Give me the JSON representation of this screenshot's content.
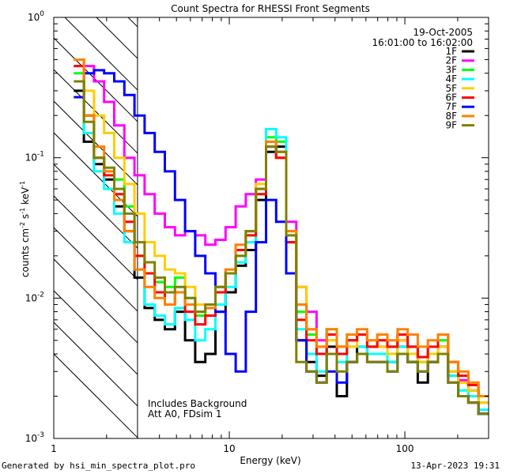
{
  "chart_data": {
    "type": "line",
    "title": "Count Spectra for RHESSI Front Segments",
    "xlabel": "Energy (keV)",
    "ylabel_parts": [
      "counts cm",
      "-2",
      " s",
      "-1",
      " keV",
      "-1"
    ],
    "xscale": "log",
    "yscale": "log",
    "xlim": [
      1.0,
      300.0
    ],
    "ylim": [
      0.001,
      1.0
    ],
    "x_ticks": [
      {
        "value": 1,
        "label": "1"
      },
      {
        "value": 10,
        "label": "10"
      },
      {
        "value": 100,
        "label": "100"
      }
    ],
    "y_ticks": [
      {
        "value": 0.001,
        "base": "10",
        "exp": "-3"
      },
      {
        "value": 0.01,
        "base": "10",
        "exp": "-2"
      },
      {
        "value": 0.1,
        "base": "10",
        "exp": "-1"
      },
      {
        "value": 1.0,
        "base": "10",
        "exp": "0"
      }
    ],
    "hatched_region_keV": [
      1.0,
      3.0
    ],
    "legend": {
      "placement": "top-right",
      "date": "19-Oct-2005",
      "time_range": "16:01:00 to 16:02:00"
    },
    "annotations": [
      "Includes Background",
      "Att A0, FDsim 1"
    ],
    "series": [
      {
        "name": "1F",
        "color": "#000000",
        "values": [
          0.3,
          0.13,
          0.09,
          0.07,
          0.045,
          0.03,
          0.014,
          0.0085,
          0.007,
          0.006,
          0.008,
          0.005,
          0.0035,
          0.004,
          0.008,
          0.011,
          0.017,
          0.022,
          0.05,
          0.11,
          0.12,
          0.025,
          0.005,
          0.0035,
          0.0028,
          0.0045,
          0.002,
          0.0035,
          0.0045,
          0.004,
          0.004,
          0.0035,
          0.0045,
          0.0035,
          0.0025,
          0.0035,
          0.0045,
          0.0028,
          0.002,
          0.0018,
          0.0015
        ]
      },
      {
        "name": "2F",
        "color": "#ff00ff",
        "values": [
          0.5,
          0.45,
          0.35,
          0.25,
          0.17,
          0.1,
          0.075,
          0.055,
          0.04,
          0.032,
          0.028,
          0.03,
          0.028,
          0.024,
          0.026,
          0.032,
          0.045,
          0.055,
          0.07,
          0.13,
          0.1,
          0.035,
          0.012,
          0.008,
          0.005,
          0.0055,
          0.0045,
          0.005,
          0.0055,
          0.0045,
          0.0045,
          0.004,
          0.005,
          0.0045,
          0.0035,
          0.004,
          0.0045,
          0.003,
          0.0026,
          0.0022,
          0.0018
        ]
      },
      {
        "name": "3F",
        "color": "#00ff00",
        "values": [
          0.4,
          0.2,
          0.1,
          0.08,
          0.07,
          0.045,
          0.02,
          0.015,
          0.013,
          0.012,
          0.014,
          0.01,
          0.0075,
          0.0085,
          0.012,
          0.015,
          0.02,
          0.03,
          0.06,
          0.14,
          0.13,
          0.03,
          0.008,
          0.0055,
          0.004,
          0.006,
          0.0045,
          0.005,
          0.0055,
          0.0045,
          0.005,
          0.0045,
          0.0055,
          0.0045,
          0.0035,
          0.004,
          0.005,
          0.003,
          0.0025,
          0.0022,
          0.0018
        ]
      },
      {
        "name": "4F",
        "color": "#00ffff",
        "values": [
          0.45,
          0.15,
          0.08,
          0.06,
          0.04,
          0.025,
          0.016,
          0.009,
          0.0075,
          0.0065,
          0.0085,
          0.007,
          0.005,
          0.006,
          0.009,
          0.012,
          0.018,
          0.025,
          0.055,
          0.16,
          0.14,
          0.028,
          0.006,
          0.004,
          0.003,
          0.005,
          0.0035,
          0.0045,
          0.0045,
          0.004,
          0.004,
          0.0035,
          0.0045,
          0.004,
          0.0035,
          0.004,
          0.0045,
          0.0028,
          0.0022,
          0.002,
          0.0016
        ]
      },
      {
        "name": "5F",
        "color": "#ffcc00",
        "values": [
          0.5,
          0.3,
          0.2,
          0.15,
          0.1,
          0.065,
          0.04,
          0.025,
          0.02,
          0.016,
          0.015,
          0.012,
          0.009,
          0.009,
          0.012,
          0.016,
          0.022,
          0.03,
          0.065,
          0.12,
          0.1,
          0.03,
          0.012,
          0.006,
          0.0045,
          0.005,
          0.0045,
          0.0045,
          0.0055,
          0.005,
          0.0045,
          0.004,
          0.005,
          0.004,
          0.0035,
          0.004,
          0.0045,
          0.003,
          0.0025,
          0.0022,
          0.0018
        ]
      },
      {
        "name": "6F",
        "color": "#ff0000",
        "values": [
          0.45,
          0.2,
          0.1,
          0.075,
          0.055,
          0.035,
          0.02,
          0.015,
          0.011,
          0.009,
          0.011,
          0.008,
          0.0065,
          0.0075,
          0.011,
          0.015,
          0.022,
          0.028,
          0.055,
          0.12,
          0.1,
          0.025,
          0.007,
          0.005,
          0.004,
          0.0055,
          0.004,
          0.005,
          0.0055,
          0.0045,
          0.005,
          0.0045,
          0.0055,
          0.0045,
          0.0038,
          0.0045,
          0.0055,
          0.0035,
          0.0028,
          0.0024,
          0.002
        ]
      },
      {
        "name": "7F",
        "color": "#0000ff",
        "values": [
          0.27,
          0.4,
          0.42,
          0.4,
          0.35,
          0.28,
          0.2,
          0.15,
          0.11,
          0.08,
          0.05,
          0.03,
          0.02,
          0.015,
          0.008,
          0.004,
          0.003,
          0.008,
          0.025,
          0.05,
          0.035,
          0.015,
          0.005,
          0.003,
          0.0025,
          0.003,
          0.0025,
          0.0035,
          0.004,
          0.0035,
          0.0035,
          0.003,
          0.004,
          0.0035,
          0.003,
          0.0035,
          0.004,
          0.0025,
          0.002,
          0.0018,
          0.0015
        ]
      },
      {
        "name": "8F",
        "color": "#ff8000",
        "values": [
          0.5,
          0.2,
          0.12,
          0.08,
          0.05,
          0.03,
          0.016,
          0.012,
          0.01,
          0.009,
          0.011,
          0.009,
          0.008,
          0.0085,
          0.012,
          0.016,
          0.024,
          0.03,
          0.06,
          0.13,
          0.11,
          0.03,
          0.009,
          0.006,
          0.0045,
          0.006,
          0.0045,
          0.0055,
          0.006,
          0.005,
          0.0055,
          0.005,
          0.006,
          0.0055,
          0.0045,
          0.005,
          0.0055,
          0.0035,
          0.003,
          0.0025,
          0.002
        ]
      },
      {
        "name": "9F",
        "color": "#808000",
        "values": [
          0.35,
          0.18,
          0.1,
          0.085,
          0.06,
          0.04,
          0.025,
          0.018,
          0.014,
          0.011,
          0.012,
          0.01,
          0.008,
          0.009,
          0.012,
          0.015,
          0.02,
          0.03,
          0.06,
          0.12,
          0.11,
          0.028,
          0.0035,
          0.003,
          0.0025,
          0.004,
          0.003,
          0.0035,
          0.004,
          0.0035,
          0.0035,
          0.003,
          0.004,
          0.0035,
          0.003,
          0.0035,
          0.004,
          0.0025,
          0.002,
          0.0018,
          0.0015
        ]
      }
    ]
  },
  "footer": {
    "generated_by": "Generated by hsi_min_spectra_plot.pro",
    "timestamp": "13-Apr-2023 19:31"
  }
}
